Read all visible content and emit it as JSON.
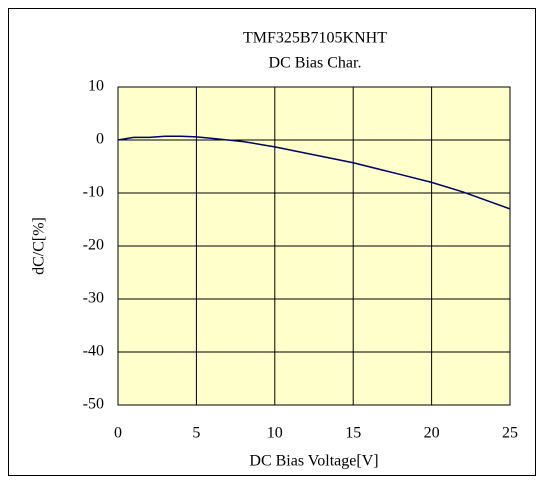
{
  "chart_data": {
    "type": "line",
    "title": "TMF325B7105KNHT",
    "subtitle": "DC Bias Char.",
    "xlabel": "DC Bias Voltage[V]",
    "ylabel": "dC/C[%]",
    "x": [
      0,
      1,
      2,
      3,
      4,
      5,
      6,
      7,
      8,
      9,
      10,
      12,
      15,
      18,
      20,
      22,
      25
    ],
    "values": [
      0,
      0.5,
      0.5,
      0.7,
      0.7,
      0.6,
      0.3,
      0,
      -0.3,
      -0.8,
      -1.3,
      -2.5,
      -4.3,
      -6.5,
      -8,
      -9.8,
      -13
    ],
    "color": "#000066",
    "xlim": [
      0,
      25
    ],
    "xticks": [
      0,
      5,
      10,
      15,
      20,
      25
    ],
    "ylim": [
      -50,
      10
    ],
    "yticks": [
      -50,
      -40,
      -30,
      -20,
      -10,
      0,
      10
    ],
    "grid": true
  }
}
